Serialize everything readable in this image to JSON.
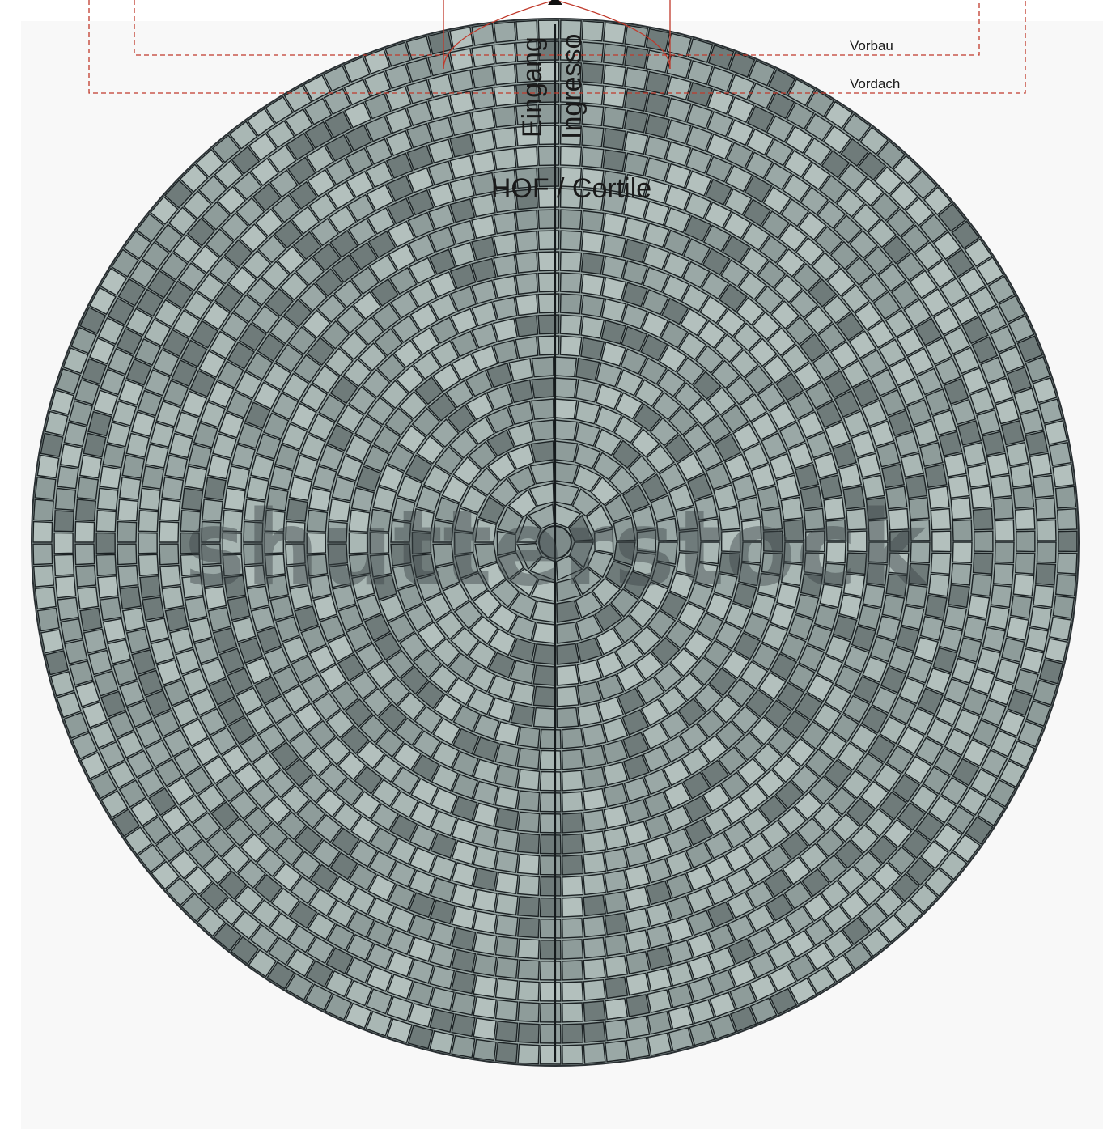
{
  "labels": {
    "vorbau": "Vorbau",
    "vordach": "Vordach",
    "eingang": "Eingang",
    "ingresso": "Ingresso",
    "courtyard": "HOF / Cortile"
  },
  "watermark": "shutterstock",
  "colors": {
    "dashed_outline": "#c0392b",
    "stone_light": "#a9b7b4",
    "stone_mid": "#8e9c9a",
    "stone_dark": "#6f7b7a",
    "joint": "#1c2224",
    "background": "#f8f8f8"
  }
}
